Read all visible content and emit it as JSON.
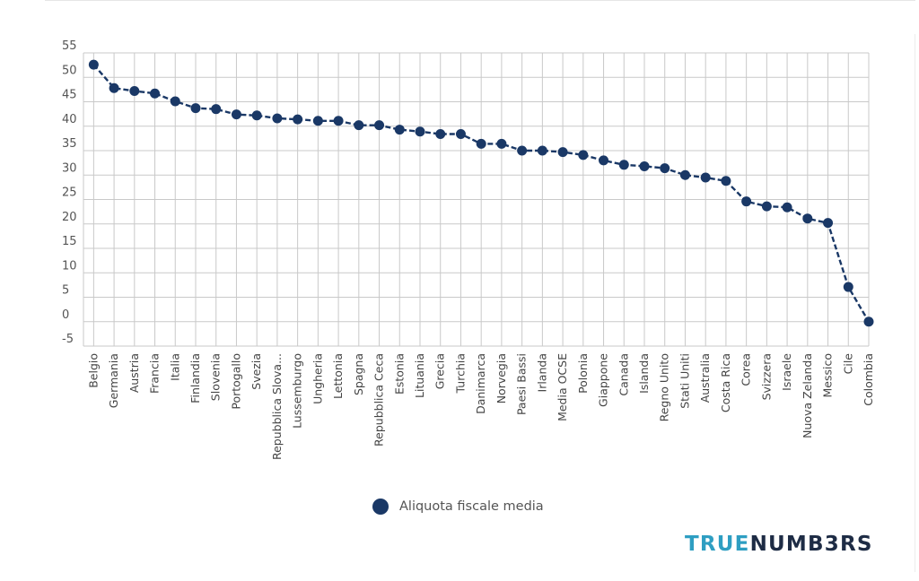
{
  "chart_data": {
    "type": "line",
    "title": "",
    "xlabel": "",
    "ylabel": "",
    "ylim": [
      -5,
      55
    ],
    "y_ticks": [
      "55",
      "50",
      "45",
      "40",
      "35",
      "30",
      "25",
      "20",
      "15",
      "10",
      "5",
      "0",
      "-5"
    ],
    "grid": true,
    "legend_position": "bottom",
    "marker_color": "#1a3866",
    "grid_color": "#c9c9c9",
    "categories": [
      "Belgio",
      "Germania",
      "Austria",
      "Francia",
      "Italia",
      "Finlandia",
      "Slovenia",
      "Portogallo",
      "Svezia",
      "Repubblica Slova...",
      "Lussemburgo",
      "Ungheria",
      "Lettonia",
      "Spagna",
      "Repubblica Ceca",
      "Estonia",
      "Lituania",
      "Grecia",
      "Turchia",
      "Danimarca",
      "Norvegia",
      "Paesi Bassi",
      "Irlanda",
      "Media OCSE",
      "Polonia",
      "Giappone",
      "Canada",
      "Islanda",
      "Regno Unito",
      "Stati Uniti",
      "Australia",
      "Costa Rica",
      "Corea",
      "Svizzera",
      "Israele",
      "Nuova Zelanda",
      "Messico",
      "Cile",
      "Colombia"
    ],
    "series": [
      {
        "name": "Aliquota fiscale media",
        "values": [
          52.6,
          47.8,
          47.2,
          46.7,
          45.1,
          43.7,
          43.5,
          42.4,
          42.2,
          41.6,
          41.4,
          41.1,
          41.1,
          40.2,
          40.2,
          39.3,
          38.9,
          38.4,
          38.4,
          36.4,
          36.4,
          35.0,
          35.0,
          34.7,
          34.1,
          33.0,
          32.1,
          31.8,
          31.4,
          30.0,
          29.5,
          28.8,
          24.6,
          23.6,
          23.4,
          21.1,
          20.2,
          7.1,
          0.0
        ]
      }
    ]
  },
  "legend": {
    "label": "Aliquota fiscale media"
  },
  "brand": {
    "part1": "TRUE",
    "part2": "NUMB3RS"
  }
}
